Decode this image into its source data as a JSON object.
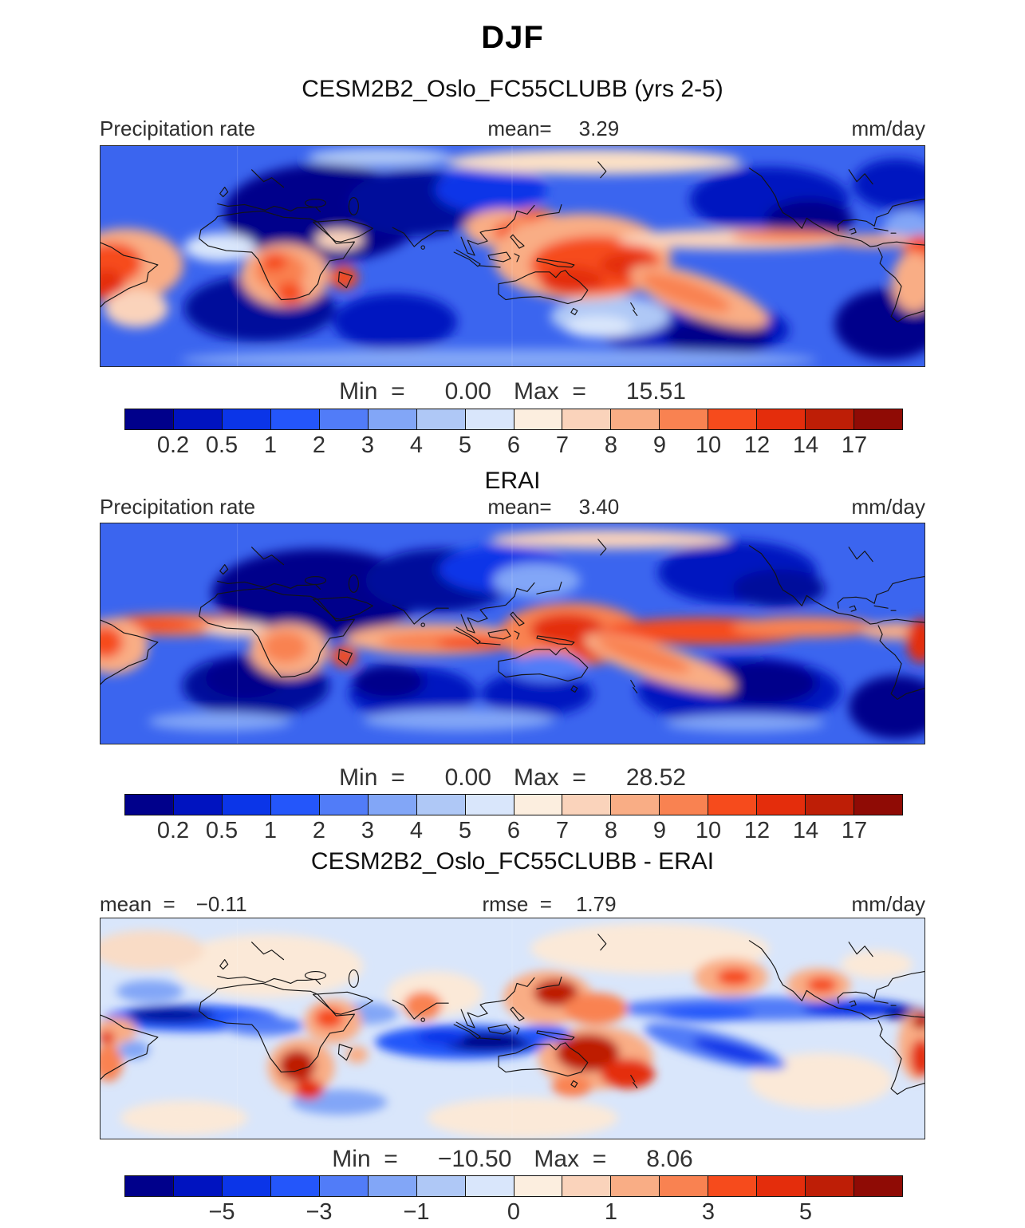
{
  "figure": {
    "season_title": "DJF",
    "model_subtitle": "CESM2B2_Oslo_FC55CLUBB (yrs 2-5)"
  },
  "panels": [
    {
      "title": "CESM2B2_Oslo_FC55CLUBB (yrs 2-5)",
      "field_label": "Precipitation rate",
      "mean_label": "mean=",
      "mean_value": "3.29",
      "units": "mm/day",
      "min_label": "Min  =",
      "min_value": "0.00",
      "max_label": "Max  =",
      "max_value": "15.51"
    },
    {
      "title": "ERAI",
      "field_label": "Precipitation rate",
      "mean_label": "mean=",
      "mean_value": "3.40",
      "units": "mm/day",
      "min_label": "Min  =",
      "min_value": "0.00",
      "max_label": "Max  =",
      "max_value": "28.52"
    },
    {
      "title": "CESM2B2_Oslo_FC55CLUBB - ERAI",
      "mean_label": "mean  =",
      "mean_value": "−0.11",
      "rmse_label": "rmse  =",
      "rmse_value": "1.79",
      "units": "mm/day",
      "min_label": "Min  =",
      "min_value": "−10.50",
      "max_label": "Max  =",
      "max_value": "8.06"
    }
  ],
  "colorbars": {
    "precip": {
      "colors": [
        "#00008B",
        "#0013C0",
        "#0B35E8",
        "#2456FA",
        "#517CF8",
        "#82A6F7",
        "#AFC8F6",
        "#D9E6FB",
        "#FCEEDF",
        "#FAD3BB",
        "#F9AD85",
        "#F98251",
        "#F64B1C",
        "#E42D0C",
        "#BE1E06",
        "#8F0B05"
      ],
      "ticks": [
        "0.2",
        "0.5",
        "1",
        "2",
        "3",
        "4",
        "5",
        "6",
        "7",
        "8",
        "9",
        "10",
        "12",
        "14",
        "17"
      ],
      "tick_boundaries": [
        1,
        2,
        3,
        4,
        5,
        6,
        7,
        8,
        9,
        10,
        11,
        12,
        13,
        14,
        15
      ]
    },
    "diff": {
      "colors": [
        "#00008B",
        "#0013C0",
        "#0B35E8",
        "#2456FA",
        "#517CF8",
        "#82A6F7",
        "#AFC8F6",
        "#D9E6FB",
        "#FCEEDF",
        "#FAD3BB",
        "#F9AD85",
        "#F98251",
        "#F64B1C",
        "#E42D0C",
        "#BE1E06",
        "#8F0B05"
      ],
      "ticks": [
        "−5",
        "−3",
        "−1",
        "0",
        "1",
        "3",
        "5"
      ],
      "tick_boundaries": [
        2,
        4,
        6,
        8,
        10,
        12,
        14
      ]
    }
  },
  "chart_data": [
    {
      "type": "heatmap",
      "title": "CESM2B2_Oslo_FC55CLUBB (yrs 2-5)",
      "variable": "Precipitation rate",
      "season": "DJF",
      "units": "mm/day",
      "mean": 3.29,
      "min": 0.0,
      "max": 15.51,
      "contour_levels": [
        0.2,
        0.5,
        1,
        2,
        3,
        4,
        5,
        6,
        7,
        8,
        9,
        10,
        12,
        14,
        17
      ],
      "palette": "blue-to-red, 16 bins",
      "projection": "global cylindrical equidistant, longitudes ~60W eastward around globe",
      "legend_position": "bottom",
      "notable_features": "dry (dark blue) Sahara/Arabia, subtropical highs; wet (red) ITCZ over Maritime Continent, SPCZ, Amazon, southern Africa, Madagascar"
    },
    {
      "type": "heatmap",
      "title": "ERAI",
      "variable": "Precipitation rate",
      "season": "DJF",
      "units": "mm/day",
      "mean": 3.4,
      "min": 0.0,
      "max": 28.52,
      "contour_levels": [
        0.2,
        0.5,
        1,
        2,
        3,
        4,
        5,
        6,
        7,
        8,
        9,
        10,
        12,
        14,
        17
      ],
      "palette": "blue-to-red, 16 bins",
      "projection": "global cylindrical equidistant",
      "legend_position": "bottom",
      "notable_features": "narrow continuous ITCZ band across Atlantic, Indian Ocean and Pacific; strong Maritime Continent maximum; dry subtropical highs"
    },
    {
      "type": "heatmap",
      "title": "CESM2B2_Oslo_FC55CLUBB - ERAI",
      "variable": "Precipitation rate difference",
      "season": "DJF",
      "units": "mm/day",
      "mean": -0.11,
      "rmse": 1.79,
      "min": -10.5,
      "max": 8.06,
      "labeled_levels": [
        -5,
        -3,
        -1,
        0,
        1,
        3,
        5
      ],
      "palette": "blue-to-red, 16 bins",
      "projection": "global cylindrical equidistant",
      "legend_position": "bottom",
      "notable_features": "dry bias (blue) along equatorial Atlantic, Indian Ocean and equatorial Pacific; wet bias (red) over southern Africa, northern Australia, Philippines, central North Pacific"
    }
  ]
}
